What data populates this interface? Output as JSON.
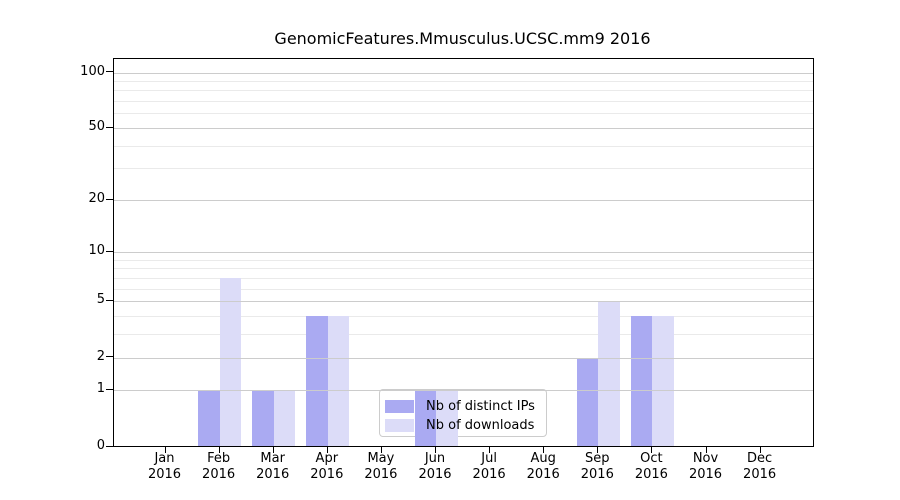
{
  "chart_data": {
    "type": "bar",
    "title": "GenomicFeatures.Mmusculus.UCSC.mm9 2016",
    "year": "2016",
    "categories": [
      "Jan",
      "Feb",
      "Mar",
      "Apr",
      "May",
      "Jun",
      "Jul",
      "Aug",
      "Sep",
      "Oct",
      "Nov",
      "Dec"
    ],
    "series": [
      {
        "name": "Nb of distinct IPs",
        "color": "#aaaaf2",
        "values": [
          0,
          1,
          1,
          4,
          0,
          1,
          0,
          0,
          2,
          4,
          0,
          0
        ]
      },
      {
        "name": "Nb of downloads",
        "color": "#dcdcf8",
        "values": [
          0,
          7,
          1,
          4,
          0,
          1,
          0,
          0,
          5,
          4,
          0,
          0
        ]
      }
    ],
    "y_axis": {
      "scale": "log1p",
      "ticks": [
        0,
        1,
        2,
        5,
        10,
        20,
        50,
        100
      ],
      "minor_gridlines": [
        3,
        4,
        6,
        7,
        8,
        9,
        30,
        40,
        60,
        70,
        80,
        90
      ],
      "ylim": [
        0,
        118
      ]
    },
    "xlabel": "",
    "ylabel": "",
    "grid": "horizontal",
    "legend": {
      "position": "inside-bottom-center"
    },
    "colors": {
      "major_grid": "#cccccc",
      "minor_grid": "#eaeaea",
      "axis": "#000000",
      "legend_border": "#cccccc"
    }
  }
}
